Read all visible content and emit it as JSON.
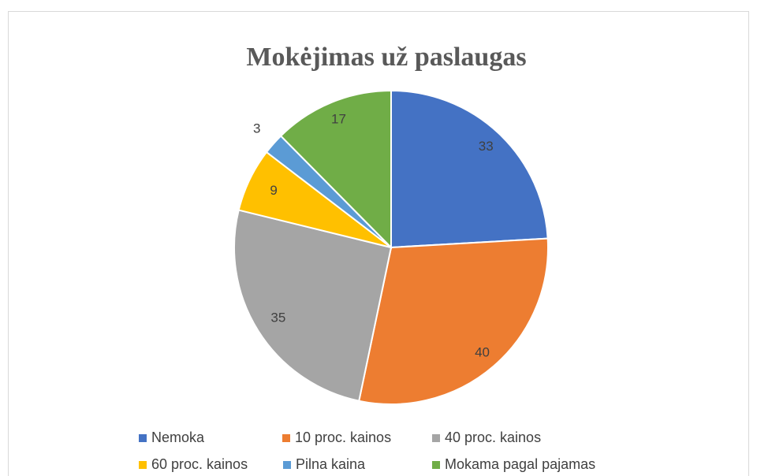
{
  "chart_data": {
    "type": "pie",
    "title": "Mokėjimas už paslaugas",
    "categories": [
      "Nemoka",
      "10 proc. kainos",
      "40 proc. kainos",
      "60 proc. kainos",
      "Pilna kaina",
      "Mokama pagal pajamas"
    ],
    "values": [
      33,
      40,
      35,
      9,
      3,
      17
    ],
    "colors": [
      "#4472c4",
      "#ed7d31",
      "#a5a5a5",
      "#ffc000",
      "#5b9bd5",
      "#70ad47"
    ],
    "legend": "bottom"
  }
}
